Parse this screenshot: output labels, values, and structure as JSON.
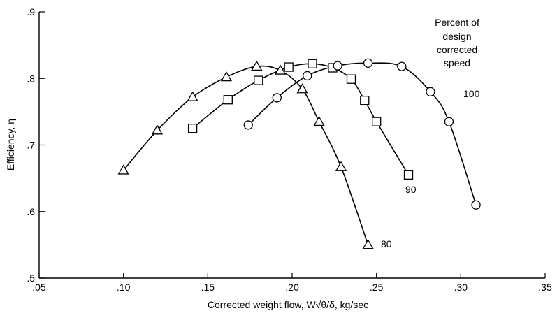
{
  "chart_data": {
    "type": "line",
    "title": "",
    "xlabel": "Corrected weight flow, W√θ/δ, kg/sec",
    "ylabel": "Efficiency, η",
    "xlim": [
      0.05,
      0.35
    ],
    "ylim": [
      0.5,
      0.9
    ],
    "x_ticks": [
      0.05,
      0.1,
      0.15,
      0.2,
      0.25,
      0.3,
      0.35
    ],
    "x_tick_labels": [
      ".05",
      ".10",
      ".15",
      ".20",
      ".25",
      ".30",
      ".35"
    ],
    "y_ticks": [
      0.5,
      0.6,
      0.7,
      0.8,
      0.9
    ],
    "y_tick_labels": [
      ".5",
      ".6",
      ".7",
      ".8",
      ".9"
    ],
    "grid": false,
    "legend_title": [
      "Percent of",
      "design",
      "corrected",
      "speed"
    ],
    "legend_placement": "top-right",
    "series": [
      {
        "name": "80",
        "marker": "triangle",
        "x": [
          0.1,
          0.12,
          0.141,
          0.161,
          0.179,
          0.193,
          0.206,
          0.216,
          0.229,
          0.245
        ],
        "y": [
          0.662,
          0.722,
          0.772,
          0.802,
          0.818,
          0.812,
          0.784,
          0.735,
          0.667,
          0.55
        ]
      },
      {
        "name": "90",
        "marker": "square",
        "x": [
          0.141,
          0.162,
          0.18,
          0.198,
          0.212,
          0.224,
          0.235,
          0.243,
          0.25,
          0.269
        ],
        "y": [
          0.725,
          0.768,
          0.797,
          0.817,
          0.822,
          0.816,
          0.799,
          0.767,
          0.735,
          0.655
        ]
      },
      {
        "name": "100",
        "marker": "circle",
        "x": [
          0.174,
          0.191,
          0.209,
          0.227,
          0.245,
          0.265,
          0.282,
          0.293,
          0.309
        ],
        "y": [
          0.73,
          0.771,
          0.804,
          0.819,
          0.823,
          0.818,
          0.78,
          0.735,
          0.61
        ]
      }
    ]
  }
}
